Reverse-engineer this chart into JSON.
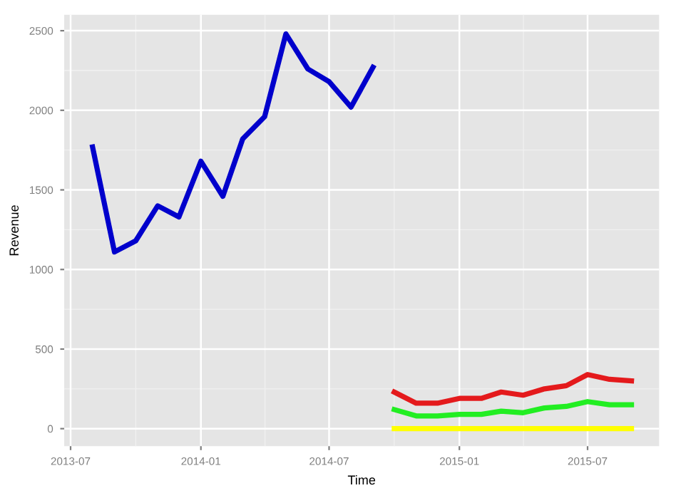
{
  "chart_data": {
    "type": "line",
    "xlabel": "Time",
    "ylabel": "Revenue",
    "ylim": [
      -110,
      2600
    ],
    "yticks": [
      0,
      500,
      1000,
      1500,
      2000,
      2500
    ],
    "xlim": [
      "2013-06-22",
      "2015-10-10"
    ],
    "xticks": [
      {
        "value": "2013-07",
        "label": "2013-07"
      },
      {
        "value": "2014-01",
        "label": "2014-01"
      },
      {
        "value": "2014-07",
        "label": "2014-07"
      },
      {
        "value": "2015-01",
        "label": "2015-01"
      },
      {
        "value": "2015-07",
        "label": "2015-07"
      }
    ],
    "grid": true,
    "legend": false,
    "series": [
      {
        "color": "#0000cc",
        "x": [
          "2013-08",
          "2013-09",
          "2013-10",
          "2013-11",
          "2013-12",
          "2014-01",
          "2014-02",
          "2014-03",
          "2014-04",
          "2014-05",
          "2014-06",
          "2014-07",
          "2014-08",
          "2014-09"
        ],
        "values": [
          1770,
          1110,
          1180,
          1400,
          1330,
          1680,
          1460,
          1820,
          1960,
          2480,
          2260,
          2180,
          2020,
          2270
        ]
      },
      {
        "color": "#e41a1c",
        "x": [
          "2014-10",
          "2014-11",
          "2014-12",
          "2015-01",
          "2015-02",
          "2015-03",
          "2015-04",
          "2015-05",
          "2015-06",
          "2015-07",
          "2015-08",
          "2015-09"
        ],
        "values": [
          230,
          160,
          160,
          190,
          190,
          230,
          210,
          250,
          270,
          340,
          310,
          300
        ]
      },
      {
        "color": "#22ee22",
        "x": [
          "2014-10",
          "2014-11",
          "2014-12",
          "2015-01",
          "2015-02",
          "2015-03",
          "2015-04",
          "2015-05",
          "2015-06",
          "2015-07",
          "2015-08",
          "2015-09"
        ],
        "values": [
          120,
          80,
          80,
          90,
          90,
          110,
          100,
          130,
          140,
          170,
          150,
          150
        ]
      },
      {
        "color": "#ffff00",
        "x": [
          "2014-10",
          "2014-11",
          "2014-12",
          "2015-01",
          "2015-02",
          "2015-03",
          "2015-04",
          "2015-05",
          "2015-06",
          "2015-07",
          "2015-08",
          "2015-09"
        ],
        "values": [
          0,
          0,
          0,
          0,
          0,
          0,
          0,
          0,
          0,
          0,
          0,
          0
        ]
      }
    ]
  }
}
